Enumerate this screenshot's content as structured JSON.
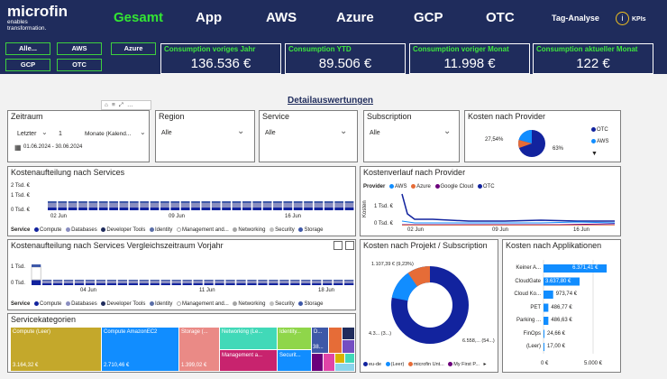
{
  "header": {
    "logo_name": "microfin",
    "logo_sub": "enables\ntransformation.",
    "tabs": [
      "Gesamt",
      "App",
      "AWS",
      "Azure",
      "GCP",
      "OTC",
      "Tag-Analyse"
    ],
    "kpis_icon": "i",
    "kpis_label": "KPIs"
  },
  "provider_buttons": [
    "Alle...",
    "AWS",
    "Azure",
    "GCP",
    "OTC"
  ],
  "kpi_cards": [
    {
      "label": "Consumption voriges Jahr",
      "value": "136.536 €"
    },
    {
      "label": "Consumption YTD",
      "value": "89.506 €"
    },
    {
      "label": "Consumption voriger Monat",
      "value": "11.998 €"
    },
    {
      "label": "Consumption aktueller Monat",
      "value": "122 €"
    }
  ],
  "section_title": "Detailauswertungen",
  "filters": {
    "zeitraum": {
      "title": "Zeitraum",
      "mode": "Letzter",
      "count": "1",
      "unit": "Monate (Kalend...",
      "range": "01.06.2024 - 30.06.2024"
    },
    "region": {
      "title": "Region",
      "value": "Alle"
    },
    "service": {
      "title": "Service",
      "value": "Alle"
    },
    "subscription": {
      "title": "Subscription",
      "value": "Alle"
    }
  },
  "kosten_provider": {
    "title": "Kosten nach Provider",
    "label_left": "27,54%",
    "label_right": "63%",
    "legend": [
      "OTC",
      "AWS"
    ]
  },
  "services_chart": {
    "title": "Kostenaufteilung nach Services",
    "y_ticks": [
      "2 Tsd. €",
      "1 Tsd. €",
      "0 Tsd. €"
    ],
    "x_ticks": [
      "02 Jun",
      "09 Jun",
      "16 Jun"
    ],
    "legend_title": "Service",
    "legend": [
      "Compute",
      "Databases",
      "Developer Tools",
      "Identity",
      "Management and...",
      "Networking",
      "Security",
      "Storage"
    ]
  },
  "services_compare": {
    "title": "Kostenaufteilung nach Services Vergleichszeitraum Vorjahr",
    "y_ticks": [
      "1 Tsd.",
      "0 Tsd."
    ],
    "x_ticks": [
      "04 Jun",
      "11 Jun",
      "18 Jun"
    ],
    "legend_title": "Service",
    "legend": [
      "Compute",
      "Databases",
      "Developer Tools",
      "Identity",
      "Management and...",
      "Networking",
      "Security",
      "Storage"
    ]
  },
  "kostenverlauf": {
    "title": "Kostenverlauf nach Provider",
    "legend_title": "Provider",
    "legend": [
      "AWS",
      "Azure",
      "Google Cloud",
      "OTC"
    ],
    "y_ticks": [
      "1 Tsd. €",
      "0 Tsd. €"
    ],
    "y_label": "Kosten",
    "x_ticks": [
      "02 Jun",
      "09 Jun",
      "16 Jun"
    ]
  },
  "projekt": {
    "title": "Kosten nach Projekt / Subscription",
    "label_top": "1.107,39 € (9,23%)",
    "label_left": "4.3... (3...)",
    "label_right": "6.558,... (54...)",
    "legend": [
      "eu-de",
      "(Leer)",
      "microfin Unt...",
      "My First P..."
    ]
  },
  "applikationen": {
    "title": "Kosten nach Applikationen",
    "bars": [
      {
        "label": "Keiner A...",
        "value": "6.371,41 €"
      },
      {
        "label": "CloudGate",
        "value": "3.637,80 €"
      },
      {
        "label": "Cloud Ko...",
        "value": "973,74 €"
      },
      {
        "label": "PET",
        "value": "486,77 €"
      },
      {
        "label": "Parking ...",
        "value": "486,63 €"
      },
      {
        "label": "FinOps",
        "value": "24,66 €"
      },
      {
        "label": "(Leer)",
        "value": "17,00 €"
      }
    ],
    "x_ticks": [
      "0 €",
      "5.000 €"
    ]
  },
  "servicekategorien": {
    "title": "Servicekategorien",
    "tiles": [
      {
        "label": "Compute (Leer)",
        "value": "3.164,32 €"
      },
      {
        "label": "Compute AmazonEC2",
        "value": "2.710,46 €"
      },
      {
        "label": "Storage (...",
        "value": "1.399,02 €"
      },
      {
        "label": "Networking (Le...",
        "value": ""
      },
      {
        "label": "Management a...",
        "value": ""
      },
      {
        "label": "Identity...",
        "value": ""
      },
      {
        "label": "Securit...",
        "value": ""
      },
      {
        "label": "D...",
        "value": "38..."
      }
    ]
  },
  "colors": {
    "navy": "#1f2c5c",
    "green": "#33e633",
    "dark_blue": "#12239e",
    "blue": "#118dff",
    "orange": "#e66c37",
    "purple": "#6b007b",
    "ocher": "#c4a82b",
    "salmon": "#ea8a86"
  }
}
